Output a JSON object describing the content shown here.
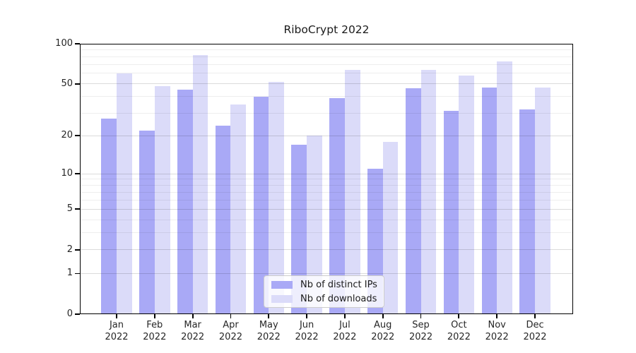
{
  "chart_data": {
    "type": "bar",
    "title": "RiboCrypt 2022",
    "categories": [
      "Jan",
      "Feb",
      "Mar",
      "Apr",
      "May",
      "Jun",
      "Jul",
      "Aug",
      "Sep",
      "Oct",
      "Nov",
      "Dec"
    ],
    "category_year": "2022",
    "series": [
      {
        "name": "Nb of distinct IPs",
        "color": "#a9a9f6",
        "values": [
          27,
          22,
          45,
          24,
          40,
          17,
          39,
          11,
          46,
          31,
          47,
          32
        ]
      },
      {
        "name": "Nb of downloads",
        "color": "#dbdbf9",
        "values": [
          60,
          48,
          82,
          35,
          52,
          20,
          64,
          18,
          64,
          58,
          74,
          47
        ]
      }
    ],
    "xlabel": "",
    "ylabel": "",
    "yscale": "log1p",
    "ylim": [
      0,
      100
    ],
    "yticks_major": [
      0,
      1,
      2,
      5,
      10,
      20,
      50,
      100
    ],
    "yticks_minor": [
      3,
      4,
      6,
      7,
      8,
      9,
      30,
      40,
      60,
      70,
      80,
      90
    ],
    "grid": "horizontal",
    "legend_position": "lower-center-inside"
  }
}
